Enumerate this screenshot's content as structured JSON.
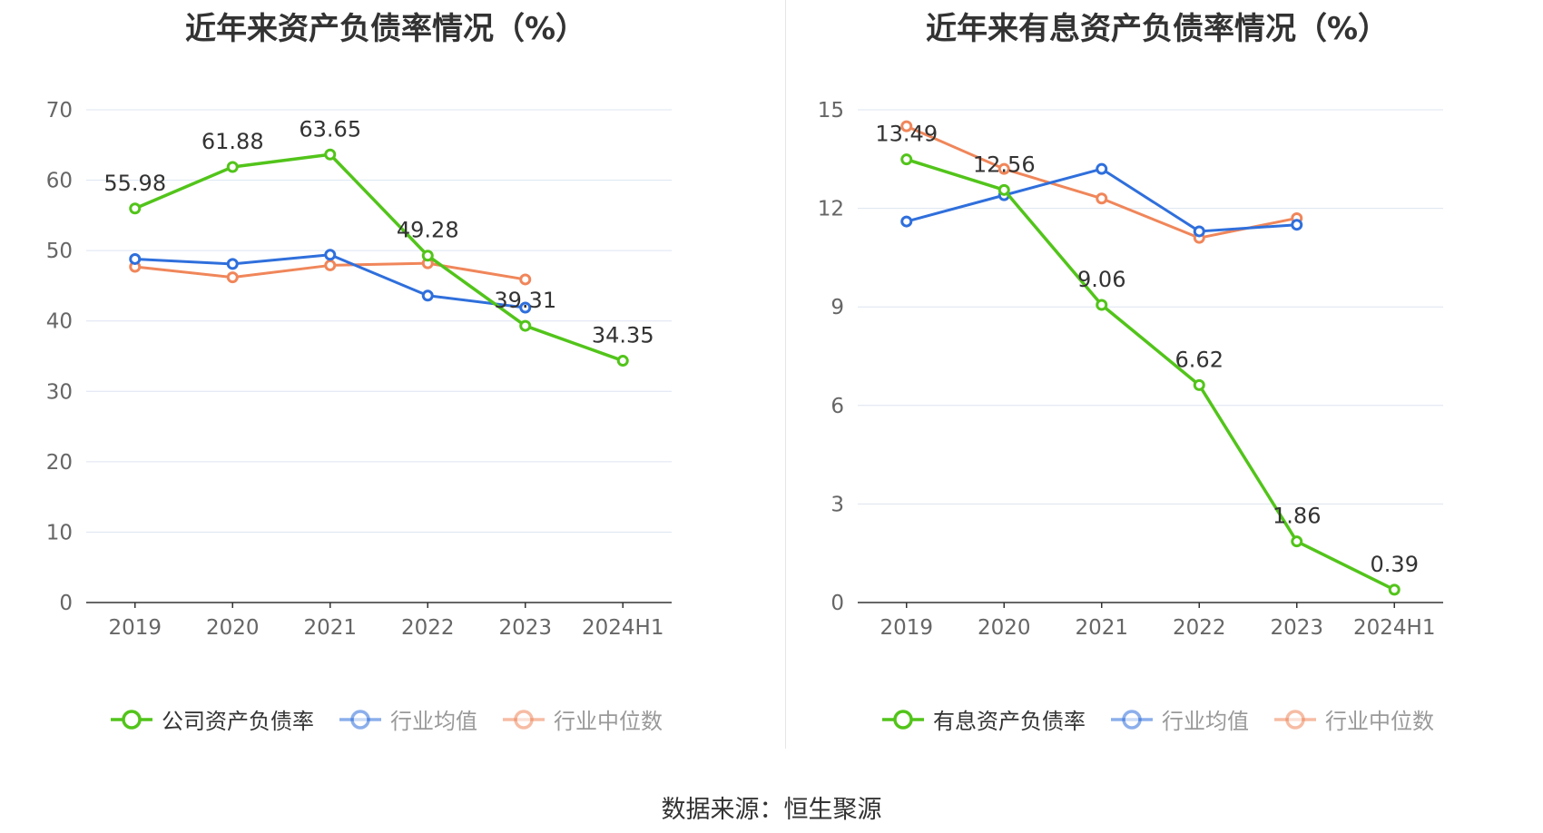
{
  "footer": "数据来源：恒生聚源",
  "colors": {
    "green": "#52c41a",
    "blue": "#2f6fdc",
    "orange": "#f0865a",
    "grid": "#dde4f0",
    "axis": "#333333",
    "tick": "#666666"
  },
  "chart_data": [
    {
      "type": "line",
      "title": "近年来资产负债率情况（%）",
      "categories": [
        "2019",
        "2020",
        "2021",
        "2022",
        "2023",
        "2024H1"
      ],
      "ylim": [
        0,
        70
      ],
      "yticks": [
        0,
        10,
        20,
        30,
        40,
        50,
        60,
        70
      ],
      "grid": true,
      "legend_position": "bottom",
      "series": [
        {
          "name": "公司资产负债率",
          "color": "#52c41a",
          "values": [
            55.98,
            61.88,
            63.65,
            49.28,
            39.31,
            34.35
          ],
          "labels": [
            "55.98",
            "61.88",
            "63.65",
            "49.28",
            "39.31",
            "34.35"
          ]
        },
        {
          "name": "行业均值",
          "color": "#2f6fdc",
          "values": [
            48.8,
            48.1,
            49.4,
            43.6,
            41.9,
            null
          ]
        },
        {
          "name": "行业中位数",
          "color": "#f0865a",
          "values": [
            47.7,
            46.2,
            47.9,
            48.2,
            45.9,
            null
          ]
        }
      ]
    },
    {
      "type": "line",
      "title": "近年来有息资产负债率情况（%）",
      "categories": [
        "2019",
        "2020",
        "2021",
        "2022",
        "2023",
        "2024H1"
      ],
      "ylim": [
        0,
        15
      ],
      "yticks": [
        0,
        3,
        6,
        9,
        12,
        15
      ],
      "grid": true,
      "legend_position": "bottom",
      "series": [
        {
          "name": "有息资产负债率",
          "color": "#52c41a",
          "values": [
            13.49,
            12.56,
            9.06,
            6.62,
            1.86,
            0.39
          ],
          "labels": [
            "13.49",
            "12.56",
            "9.06",
            "6.62",
            "1.86",
            "0.39"
          ]
        },
        {
          "name": "行业均值",
          "color": "#2f6fdc",
          "values": [
            11.6,
            12.4,
            13.2,
            11.3,
            11.5,
            null
          ]
        },
        {
          "name": "行业中位数",
          "color": "#f0865a",
          "values": [
            14.5,
            13.2,
            12.3,
            11.1,
            11.7,
            null
          ]
        }
      ]
    }
  ]
}
